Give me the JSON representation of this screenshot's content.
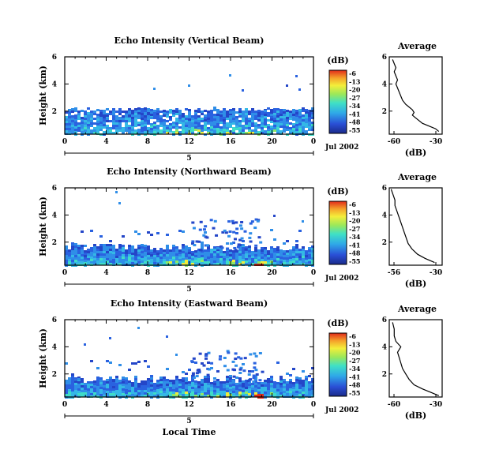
{
  "chart_data": [
    {
      "type": "heatmap",
      "title": "Echo Intensity (Vertical Beam)",
      "ylabel": "Height (km)",
      "xlabel": "",
      "x_ticks": [
        "0",
        "4",
        "8",
        "12",
        "16",
        "20",
        "0"
      ],
      "y_ticks": [
        "6",
        "4",
        "2"
      ],
      "xlim": [
        0,
        24
      ],
      "ylim": [
        0.3,
        6
      ],
      "date_tick": "5",
      "date_label": "Jul 2002",
      "colorbar": {
        "unit": "(dB)",
        "ticks": [
          "-6",
          "-13",
          "-20",
          "-27",
          "-34",
          "-41",
          "-48",
          "-55"
        ],
        "range": [
          -55,
          -6
        ]
      },
      "profile": {
        "title": "Average",
        "xlabel": "(dB)",
        "x_ticks": [
          "-60",
          "-30"
        ],
        "y_ticks": [
          "6",
          "4",
          "2"
        ],
        "xlim": [
          -60,
          -28
        ],
        "points": [
          [
            -58,
            5.8
          ],
          [
            -57,
            5.5
          ],
          [
            -56,
            5.2
          ],
          [
            -57,
            4.9
          ],
          [
            -56,
            4.6
          ],
          [
            -55,
            4.3
          ],
          [
            -56,
            4.0
          ],
          [
            -55,
            3.7
          ],
          [
            -54,
            3.4
          ],
          [
            -53,
            3.1
          ],
          [
            -52,
            2.8
          ],
          [
            -50,
            2.5
          ],
          [
            -48,
            2.3
          ],
          [
            -46,
            2.1
          ],
          [
            -45,
            1.9
          ],
          [
            -46,
            1.7
          ],
          [
            -44,
            1.5
          ],
          [
            -42,
            1.3
          ],
          [
            -40,
            1.1
          ],
          [
            -36,
            0.9
          ],
          [
            -32,
            0.7
          ],
          [
            -30,
            0.5
          ]
        ]
      }
    },
    {
      "type": "heatmap",
      "title": "Echo Intensity (Northward Beam)",
      "ylabel": "Height (km)",
      "xlabel": "",
      "x_ticks": [
        "0",
        "4",
        "8",
        "12",
        "16",
        "20",
        "0"
      ],
      "y_ticks": [
        "6",
        "4",
        "2"
      ],
      "xlim": [
        0,
        24
      ],
      "ylim": [
        0.3,
        6
      ],
      "date_tick": "5",
      "date_label": "Jul 2002",
      "colorbar": {
        "unit": "(dB)",
        "ticks": [
          "-6",
          "-13",
          "-20",
          "-27",
          "-34",
          "-41",
          "-48",
          "-55"
        ],
        "range": [
          -55,
          -6
        ]
      },
      "profile": {
        "title": "Average",
        "xlabel": "(dB)",
        "x_ticks": [
          "-56",
          "-30"
        ],
        "y_ticks": [
          "6",
          "4",
          "2"
        ],
        "xlim": [
          -56,
          -28
        ],
        "points": [
          [
            -55,
            5.9
          ],
          [
            -54,
            5.5
          ],
          [
            -53,
            5.1
          ],
          [
            -53,
            4.7
          ],
          [
            -52,
            4.3
          ],
          [
            -51,
            3.9
          ],
          [
            -50,
            3.5
          ],
          [
            -49,
            3.1
          ],
          [
            -48,
            2.7
          ],
          [
            -47,
            2.3
          ],
          [
            -46,
            1.9
          ],
          [
            -44,
            1.5
          ],
          [
            -41,
            1.1
          ],
          [
            -37,
            0.8
          ],
          [
            -32,
            0.5
          ]
        ]
      }
    },
    {
      "type": "heatmap",
      "title": "Echo Intensity (Eastward Beam)",
      "ylabel": "Height (km)",
      "xlabel": "Local Time",
      "x_ticks": [
        "0",
        "4",
        "8",
        "12",
        "16",
        "20",
        "0"
      ],
      "y_ticks": [
        "6",
        "4",
        "2"
      ],
      "xlim": [
        0,
        24
      ],
      "ylim": [
        0.3,
        6
      ],
      "date_tick": "5",
      "date_label": "Jul 2002",
      "colorbar": {
        "unit": "(dB)",
        "ticks": [
          "-6",
          "-13",
          "-20",
          "-27",
          "-34",
          "-41",
          "-48",
          "-55"
        ],
        "range": [
          -55,
          -6
        ]
      },
      "profile": {
        "title": "Average",
        "xlabel": "(dB)",
        "x_ticks": [
          "-60",
          "-30"
        ],
        "y_ticks": [
          "6",
          "4",
          "2"
        ],
        "xlim": [
          -60,
          -28
        ],
        "points": [
          [
            -58,
            5.8
          ],
          [
            -57,
            5.3
          ],
          [
            -57,
            4.8
          ],
          [
            -56,
            4.4
          ],
          [
            -53,
            4.0
          ],
          [
            -55,
            3.6
          ],
          [
            -54,
            3.2
          ],
          [
            -53,
            2.8
          ],
          [
            -52,
            2.4
          ],
          [
            -50,
            2.0
          ],
          [
            -48,
            1.6
          ],
          [
            -45,
            1.2
          ],
          [
            -40,
            0.9
          ],
          [
            -34,
            0.6
          ],
          [
            -30,
            0.4
          ]
        ]
      }
    }
  ]
}
